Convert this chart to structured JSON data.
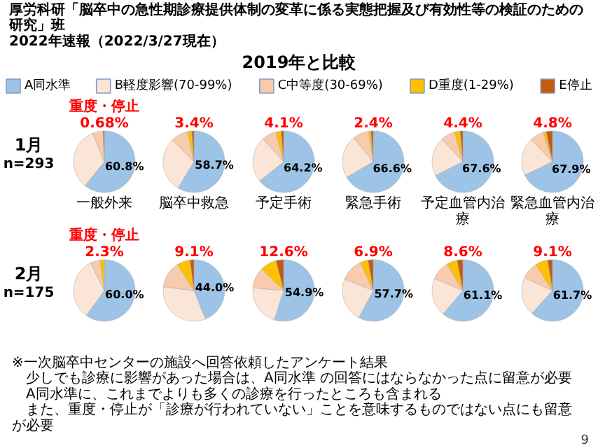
{
  "chart_data": [
    {
      "type": "other",
      "title": "2019年と比較",
      "subtitle": "厚労科研「脳卒中の急性期診療提供体制の変革に係る実態把握及び有効性等の検証のための研究」班\n2022年速報（2022/3/27現在）",
      "annotations": [
        "※一次脳卒中センターの施設へ回答依頼したアンケート結果",
        "　少しでも診療に影響があった場合は、A同水準 の回答にはならなかった点に留意が必要",
        "　A同水準に、これまでよりも多くの診療を行ったところも含まれる",
        "　また、重度・停止が「診療が行われていない」ことを意味するものではない点にも留意が必要",
        "9"
      ]
    },
    {
      "type": "pie",
      "title": "重度・停止",
      "subtitle": "0.68%",
      "xlabel": "一般外来",
      "ylabel": "1月",
      "annotations": [
        "n=293"
      ],
      "legend": "top",
      "categories": [
        "A同水準",
        "B軽度影響(70-99%)",
        "C中等度(30-69%)",
        "D重度(1-29%)",
        "E停止"
      ],
      "values": [
        60.8,
        33.02,
        5.5,
        0,
        0.68
      ],
      "colors": [
        "#9dc3e6",
        "#fbe5d6",
        "#f8cbad",
        "#ffc000",
        "#c55a11"
      ],
      "value_labels": [
        "60.8%",
        null,
        null,
        null,
        null
      ]
    },
    {
      "type": "pie",
      "subtitle": "3.4%",
      "xlabel": "脳卒中救急",
      "categories": [
        null,
        null,
        null,
        null,
        null
      ],
      "values": [
        58.7,
        28.9,
        9.0,
        2.3,
        1.1
      ],
      "colors": [
        "#9dc3e6",
        "#fbe5d6",
        "#f8cbad",
        "#ffc000",
        "#c55a11"
      ],
      "value_labels": [
        "58.7%",
        null,
        null,
        null,
        null
      ]
    },
    {
      "type": "pie",
      "subtitle": "4.1%",
      "xlabel": "予定手術",
      "categories": [
        null,
        null,
        null,
        null,
        null
      ],
      "values": [
        64.2,
        24.2,
        7.5,
        2.8,
        1.3
      ],
      "colors": [
        "#9dc3e6",
        "#fbe5d6",
        "#f8cbad",
        "#ffc000",
        "#c55a11"
      ],
      "value_labels": [
        "64.2%",
        null,
        null,
        null,
        null
      ]
    },
    {
      "type": "pie",
      "subtitle": "2.4%",
      "xlabel": "緊急手術",
      "categories": [
        null,
        null,
        null,
        null,
        null
      ],
      "values": [
        66.6,
        22.5,
        8.5,
        1.2,
        1.2
      ],
      "colors": [
        "#9dc3e6",
        "#fbe5d6",
        "#f8cbad",
        "#ffc000",
        "#c55a11"
      ],
      "value_labels": [
        "66.6%",
        null,
        null,
        null,
        null
      ]
    },
    {
      "type": "pie",
      "subtitle": "4.4%",
      "xlabel": "予定血管内治療",
      "categories": [
        null,
        null,
        null,
        null,
        null
      ],
      "values": [
        67.6,
        20.5,
        7.5,
        3.0,
        1.4
      ],
      "colors": [
        "#9dc3e6",
        "#fbe5d6",
        "#f8cbad",
        "#ffc000",
        "#c55a11"
      ],
      "value_labels": [
        "67.6%",
        null,
        null,
        null,
        null
      ]
    },
    {
      "type": "pie",
      "subtitle": "4.8%",
      "xlabel": "緊急血管内治療",
      "categories": [
        null,
        null,
        null,
        null,
        null
      ],
      "values": [
        67.9,
        19.8,
        7.5,
        1.5,
        3.3
      ],
      "colors": [
        "#9dc3e6",
        "#fbe5d6",
        "#f8cbad",
        "#ffc000",
        "#c55a11"
      ],
      "value_labels": [
        "67.9%",
        null,
        null,
        null,
        null
      ]
    },
    {
      "type": "pie",
      "title": "重度・停止",
      "subtitle": "2.3%",
      "ylabel": "2月",
      "annotations": [
        "n=175"
      ],
      "categories": [
        null,
        null,
        null,
        null,
        null
      ],
      "values": [
        60.0,
        32.7,
        5.0,
        2.3,
        0
      ],
      "colors": [
        "#9dc3e6",
        "#fbe5d6",
        "#f8cbad",
        "#ffc000",
        "#c55a11"
      ],
      "value_labels": [
        "60.0%",
        null,
        null,
        null,
        null
      ]
    },
    {
      "type": "pie",
      "subtitle": "9.1%",
      "categories": [
        null,
        null,
        null,
        null,
        null
      ],
      "values": [
        44.0,
        32.9,
        14.0,
        7.0,
        2.1
      ],
      "colors": [
        "#9dc3e6",
        "#fbe5d6",
        "#f8cbad",
        "#ffc000",
        "#c55a11"
      ],
      "value_labels": [
        "44.0%",
        null,
        null,
        null,
        null
      ]
    },
    {
      "type": "pie",
      "subtitle": "12.6%",
      "categories": [
        null,
        null,
        null,
        null,
        null
      ],
      "values": [
        54.9,
        21.5,
        11.0,
        8.6,
        4.0
      ],
      "colors": [
        "#9dc3e6",
        "#fbe5d6",
        "#f8cbad",
        "#ffc000",
        "#c55a11"
      ],
      "value_labels": [
        "54.9%",
        null,
        null,
        null,
        null
      ]
    },
    {
      "type": "pie",
      "subtitle": "6.9%",
      "categories": [
        null,
        null,
        null,
        null,
        null
      ],
      "values": [
        57.7,
        23.4,
        12.0,
        4.2,
        2.7
      ],
      "colors": [
        "#9dc3e6",
        "#fbe5d6",
        "#f8cbad",
        "#ffc000",
        "#c55a11"
      ],
      "value_labels": [
        "57.7%",
        null,
        null,
        null,
        null
      ]
    },
    {
      "type": "pie",
      "subtitle": "8.6%",
      "categories": [
        null,
        null,
        null,
        null,
        null
      ],
      "values": [
        61.1,
        20.3,
        10.0,
        5.6,
        3.0
      ],
      "colors": [
        "#9dc3e6",
        "#fbe5d6",
        "#f8cbad",
        "#ffc000",
        "#c55a11"
      ],
      "value_labels": [
        "61.1%",
        null,
        null,
        null,
        null
      ]
    },
    {
      "type": "pie",
      "subtitle": "9.1%",
      "categories": [
        null,
        null,
        null,
        null,
        null
      ],
      "values": [
        61.7,
        20.2,
        9.0,
        6.5,
        2.6
      ],
      "colors": [
        "#9dc3e6",
        "#fbe5d6",
        "#f8cbad",
        "#ffc000",
        "#c55a11"
      ],
      "value_labels": [
        "61.7%",
        null,
        null,
        null,
        null
      ]
    }
  ]
}
